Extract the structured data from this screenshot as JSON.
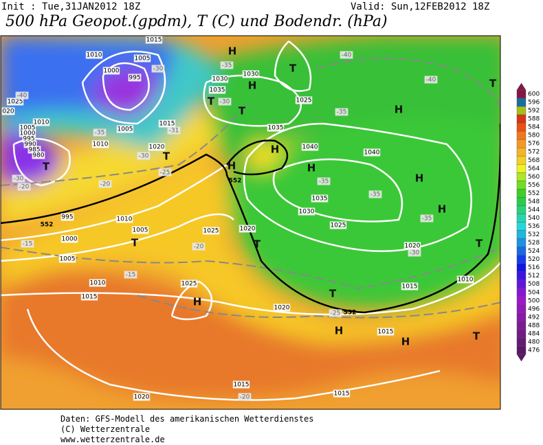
{
  "header": {
    "init": "Init : Tue,31JAN2012 18Z",
    "valid": "Valid: Sun,12FEB2012 18Z",
    "title": "500 hPa Geopot.(gpdm), T (C) und Bodendr. (hPa)"
  },
  "colorbar": {
    "labels": [
      "600",
      "596",
      "592",
      "588",
      "584",
      "580",
      "576",
      "572",
      "568",
      "564",
      "560",
      "556",
      "552",
      "548",
      "544",
      "540",
      "536",
      "532",
      "528",
      "524",
      "520",
      "516",
      "512",
      "508",
      "504",
      "500",
      "496",
      "492",
      "488",
      "484",
      "480",
      "476"
    ]
  },
  "map": {
    "labels": [
      "H",
      "H",
      "H",
      "H",
      "H",
      "H",
      "H",
      "H",
      "H",
      "H",
      "H",
      "T",
      "T",
      "T",
      "T",
      "T",
      "T",
      "T",
      "T",
      "T",
      "T",
      "T",
      "1015",
      "1010",
      "1005",
      "1000",
      "995",
      "1025",
      "020",
      "1010",
      "1005",
      "1000",
      "995",
      "990",
      "985",
      "980",
      "1005",
      "1010",
      "1015",
      "1020",
      "1030",
      "1030",
      "1035",
      "1025",
      "1035",
      "1040",
      "1040",
      "1035",
      "1030",
      "1025",
      "1020",
      "1025",
      "1010",
      "1005",
      "995",
      "1000",
      "1005",
      "1010",
      "1015",
      "1025",
      "1020",
      "1015",
      "1010",
      "1020",
      "1015",
      "1015",
      "1015",
      "1020",
      "-30",
      "-40",
      "-35",
      "-31",
      "-30",
      "-25",
      "-35",
      "-30",
      "-40",
      "-40",
      "-35",
      "-35",
      "-35",
      "-35",
      "-30",
      "-30",
      "-20",
      "-20",
      "-15",
      "-20",
      "-15",
      "-25",
      "-20",
      "552",
      "552",
      "552"
    ]
  },
  "footer": {
    "lines": [
      "Daten: GFS-Modell des amerikanischen Wetterdienstes",
      "(C) Wetterzentrale",
      "www.wetterzentrale.de"
    ]
  }
}
